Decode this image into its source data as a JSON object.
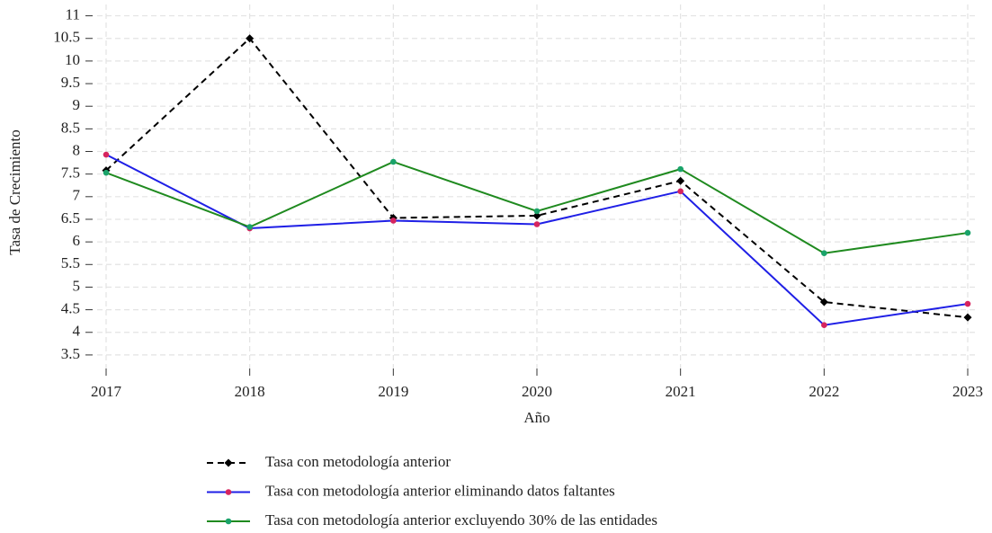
{
  "chart_data": {
    "type": "line",
    "x_label": "Año",
    "y_label": "Tasa de Crecimiento",
    "categories": [
      "2017",
      "2018",
      "2019",
      "2020",
      "2021",
      "2022",
      "2023"
    ],
    "series": [
      {
        "name": "Tasa con metodología anterior",
        "color": "#000000",
        "marker_color": "#000000",
        "marker": "diamond",
        "dashed": true,
        "values": [
          7.58,
          10.5,
          6.53,
          6.58,
          7.35,
          4.67,
          4.33
        ]
      },
      {
        "name": "Tasa con metodología anterior eliminando datos faltantes",
        "color": "#1f1fe6",
        "marker_color": "#d6245e",
        "marker": "circle",
        "dashed": false,
        "values": [
          7.93,
          6.3,
          6.47,
          6.39,
          7.12,
          4.16,
          4.63
        ]
      },
      {
        "name": "Tasa con metodología anterior excluyendo 30% de las entidades",
        "color": "#1f8a1f",
        "marker_color": "#1aa36a",
        "marker": "circle",
        "dashed": false,
        "values": [
          7.53,
          6.33,
          7.77,
          6.68,
          7.61,
          5.75,
          6.2
        ]
      }
    ],
    "ylim": [
      3.2,
      11.25
    ],
    "yticks": [
      3.5,
      4,
      4.5,
      5,
      5.5,
      6,
      6.5,
      7,
      7.5,
      8,
      8.5,
      9,
      9.5,
      10,
      10.5,
      11
    ],
    "grid": true,
    "legend_position": "bottom"
  }
}
